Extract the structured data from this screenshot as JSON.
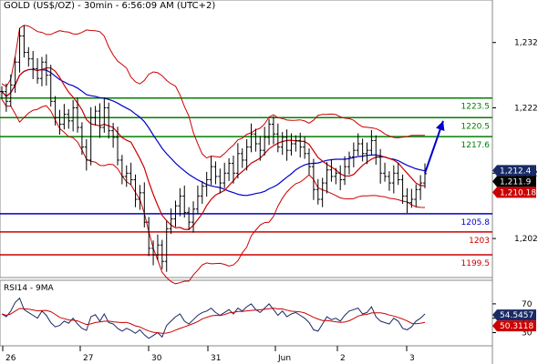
{
  "chart_data": {
    "type": "candlestick",
    "title": "GOLD (US$/OZ) - 30min - 6:56:09 AM (UTC+2)",
    "y_axis": {
      "ticks": [
        1232,
        1222,
        1212,
        1202
      ],
      "tick_labels": [
        "1,232",
        "1,222",
        "1,212",
        "1,202"
      ],
      "range": [
        1197,
        1236
      ]
    },
    "x_axis": {
      "tick_labels": [
        "26",
        "27",
        "30",
        "31",
        "Jun",
        "2",
        "3"
      ]
    },
    "levels": [
      {
        "label": "1223.5",
        "value": 1223.5,
        "color": "#008000"
      },
      {
        "label": "1220.5",
        "value": 1220.5,
        "color": "#008000"
      },
      {
        "label": "1217.6",
        "value": 1217.6,
        "color": "#008000"
      },
      {
        "label": "1205.8",
        "value": 1205.8,
        "color": "#0000cc"
      },
      {
        "label": "1203",
        "value": 1203.0,
        "color": "#cc0000"
      },
      {
        "label": "1199.5",
        "value": 1199.5,
        "color": "#cc0000"
      }
    ],
    "price_tags": [
      {
        "label": "1,212.4",
        "value": 1212.4,
        "color": "#1a2a66"
      },
      {
        "label": "1,211.9",
        "value": 1211.9,
        "color": "#000000"
      },
      {
        "label": "1,210.18",
        "value": 1210.18,
        "color": "#cc0000"
      }
    ],
    "close_series": [
      1224.5,
      1223.0,
      1225.5,
      1229.0,
      1233.0,
      1230.5,
      1229.5,
      1228.0,
      1226.5,
      1229.0,
      1227.0,
      1223.0,
      1220.5,
      1219.5,
      1221.0,
      1220.0,
      1222.0,
      1219.0,
      1216.0,
      1214.0,
      1220.5,
      1221.5,
      1219.0,
      1222.0,
      1218.5,
      1217.5,
      1214.0,
      1211.5,
      1212.0,
      1211.0,
      1208.0,
      1209.0,
      1204.5,
      1200.5,
      1199.5,
      1201.0,
      1198.5,
      1203.5,
      1205.0,
      1207.0,
      1208.5,
      1206.0,
      1204.5,
      1206.5,
      1208.5,
      1210.0,
      1211.0,
      1213.0,
      1211.5,
      1210.5,
      1212.0,
      1213.5,
      1212.0,
      1215.0,
      1214.0,
      1216.0,
      1218.0,
      1216.5,
      1215.5,
      1217.5,
      1219.5,
      1218.0,
      1216.0,
      1217.5,
      1215.5,
      1216.5,
      1217.0,
      1216.0,
      1215.0,
      1213.0,
      1209.5,
      1208.0,
      1210.5,
      1212.5,
      1211.5,
      1212.0,
      1211.0,
      1213.0,
      1214.5,
      1215.5,
      1216.5,
      1215.0,
      1215.5,
      1217.0,
      1214.5,
      1212.0,
      1211.5,
      1210.5,
      1212.0,
      1211.0,
      1208.5,
      1207.5,
      1208.0,
      1209.5,
      1210.5,
      1211.9
    ],
    "moving_averages": [
      {
        "color": "#0000cc",
        "period": 30
      },
      {
        "color": "#cc0000",
        "period": 10
      }
    ],
    "bands": {
      "color": "#cc0000",
      "period": 20,
      "width": 2
    },
    "projection": {
      "from_value": 1212.0,
      "to_value": 1220.0,
      "color": "#0000cc"
    },
    "rsi": {
      "title": "RSI14 - 9MA",
      "ticks": [
        70,
        50,
        30
      ],
      "tick_labels": [
        "70",
        "50",
        "30"
      ],
      "range": [
        18,
        80
      ],
      "values": [
        56,
        52,
        60,
        72,
        78,
        62,
        58,
        54,
        50,
        60,
        54,
        44,
        38,
        40,
        46,
        43,
        50,
        42,
        36,
        33,
        52,
        55,
        46,
        56,
        44,
        42,
        36,
        32,
        36,
        33,
        29,
        34,
        27,
        22,
        26,
        30,
        24,
        40,
        46,
        52,
        56,
        46,
        42,
        48,
        54,
        58,
        60,
        64,
        58,
        54,
        58,
        62,
        56,
        64,
        60,
        66,
        70,
        62,
        58,
        64,
        70,
        62,
        54,
        60,
        52,
        56,
        58,
        54,
        50,
        44,
        34,
        32,
        42,
        52,
        48,
        50,
        46,
        54,
        60,
        62,
        64,
        56,
        58,
        66,
        52,
        46,
        44,
        42,
        50,
        46,
        36,
        34,
        38,
        46,
        50,
        56
      ],
      "tags": [
        {
          "label": "54.5457",
          "value": 54.5457,
          "color": "#1a2a66"
        },
        {
          "label": "50.3118",
          "value": 50.3118,
          "color": "#cc0000"
        }
      ]
    }
  }
}
